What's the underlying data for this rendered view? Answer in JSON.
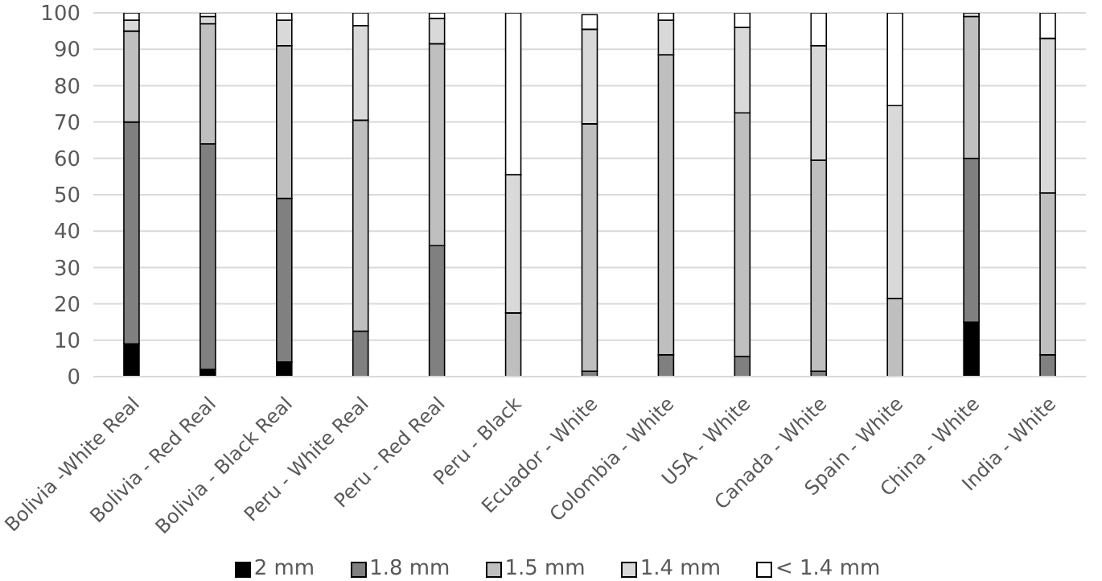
{
  "chart_data": {
    "type": "bar",
    "stacked": true,
    "categories": [
      "Bolivia -White Real",
      "Bolivia - Red Real",
      "Bolivia - Black Real",
      "Peru - White Real",
      "Peru - Red Real",
      "Peru - Black",
      "Ecuador - White",
      "Colombia - White",
      "USA - White",
      "Canada - White",
      "Spain - White",
      "China - White",
      "India - White"
    ],
    "series": [
      {
        "name": "2 mm",
        "color": "#000000",
        "values": [
          9,
          2,
          4,
          0,
          0,
          0,
          0,
          0,
          0,
          0,
          0,
          15,
          0
        ]
      },
      {
        "name": "1.8 mm",
        "color": "#808080",
        "values": [
          61,
          62,
          45,
          12.5,
          36,
          0,
          1.5,
          6,
          5.5,
          1.5,
          0,
          45,
          6
        ]
      },
      {
        "name": "1.5 mm",
        "color": "#bfbfbf",
        "values": [
          25,
          33,
          42,
          58,
          55.5,
          17.5,
          68,
          82.5,
          67,
          58,
          21.5,
          39,
          44.5
        ]
      },
      {
        "name": "1.4 mm",
        "color": "#d9d9d9",
        "values": [
          3,
          2,
          7,
          26,
          7,
          38,
          26,
          9.5,
          23.5,
          31.5,
          53,
          1,
          42.5
        ]
      },
      {
        "name": "< 1.4 mm",
        "color": "#ffffff",
        "values": [
          2,
          1,
          2,
          3.5,
          1.5,
          44.5,
          4,
          2,
          4,
          9,
          25.5,
          null,
          7
        ]
      }
    ],
    "ylim": [
      0,
      100
    ],
    "yticks": [
      0,
      10,
      20,
      30,
      40,
      50,
      60,
      70,
      80,
      90,
      100
    ],
    "grid": "y",
    "legend": "bottom"
  }
}
